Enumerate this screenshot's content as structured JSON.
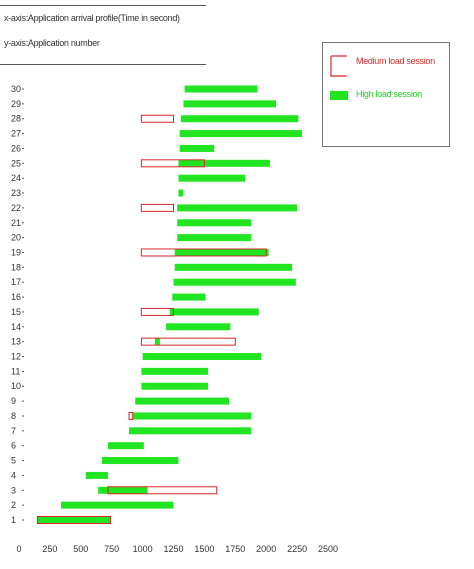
{
  "header": {
    "x_description": "x-axis:Application arrival profile(Time in second)",
    "y_description": "y-axis:Application number"
  },
  "colors": {
    "medium": "#d62828",
    "high": "#22e522"
  },
  "chart_data": {
    "type": "bar",
    "orientation": "horizontal-range",
    "xlim": [
      0,
      2500
    ],
    "ylim": [
      0,
      30
    ],
    "x_ticks": [
      "0",
      "250",
      "500",
      "750",
      "1000",
      "1250",
      "1500",
      "1750",
      "2000",
      "2250",
      "2500"
    ],
    "y_ticks": [
      "1",
      "2",
      "3",
      "4",
      "5",
      "6",
      "7",
      "8",
      "9",
      "10",
      "11",
      "12",
      "13",
      "14",
      "15",
      "16",
      "17",
      "18",
      "19",
      "20",
      "21",
      "22",
      "23",
      "24",
      "25",
      "26",
      "27",
      "28",
      "29",
      "30"
    ],
    "legend_position": "top-right",
    "series": [
      {
        "name": "Medium load session",
        "style": "outline",
        "bars": [
          {
            "app": 1,
            "start": 150,
            "end": 740
          },
          {
            "app": 3,
            "start": 720,
            "end": 1600
          },
          {
            "app": 8,
            "start": 890,
            "end": 920
          },
          {
            "app": 13,
            "start": 990,
            "end": 1750
          },
          {
            "app": 15,
            "start": 990,
            "end": 1250
          },
          {
            "app": 19,
            "start": 990,
            "end": 2000
          },
          {
            "app": 22,
            "start": 990,
            "end": 1250
          },
          {
            "app": 25,
            "start": 990,
            "end": 1500
          },
          {
            "app": 28,
            "start": 990,
            "end": 1250
          }
        ]
      },
      {
        "name": "High load session",
        "style": "filled",
        "bars": [
          {
            "app": 1,
            "start": 150,
            "end": 740
          },
          {
            "app": 2,
            "start": 340,
            "end": 1250
          },
          {
            "app": 3,
            "start": 640,
            "end": 1040
          },
          {
            "app": 4,
            "start": 540,
            "end": 720
          },
          {
            "app": 5,
            "start": 670,
            "end": 1290
          },
          {
            "app": 6,
            "start": 720,
            "end": 1010
          },
          {
            "app": 7,
            "start": 890,
            "end": 1880
          },
          {
            "app": 8,
            "start": 920,
            "end": 1880
          },
          {
            "app": 9,
            "start": 940,
            "end": 1700
          },
          {
            "app": 10,
            "start": 990,
            "end": 1530
          },
          {
            "app": 11,
            "start": 990,
            "end": 1530
          },
          {
            "app": 12,
            "start": 1000,
            "end": 1960
          },
          {
            "app": 13,
            "start": 1100,
            "end": 1140
          },
          {
            "app": 14,
            "start": 1190,
            "end": 1710
          },
          {
            "app": 15,
            "start": 1220,
            "end": 1940
          },
          {
            "app": 16,
            "start": 1240,
            "end": 1510
          },
          {
            "app": 17,
            "start": 1250,
            "end": 2240
          },
          {
            "app": 18,
            "start": 1260,
            "end": 2210
          },
          {
            "app": 19,
            "start": 1260,
            "end": 2020
          },
          {
            "app": 20,
            "start": 1280,
            "end": 1880
          },
          {
            "app": 21,
            "start": 1280,
            "end": 1880
          },
          {
            "app": 22,
            "start": 1280,
            "end": 2250
          },
          {
            "app": 23,
            "start": 1290,
            "end": 1330
          },
          {
            "app": 24,
            "start": 1290,
            "end": 1830
          },
          {
            "app": 25,
            "start": 1290,
            "end": 2030
          },
          {
            "app": 26,
            "start": 1300,
            "end": 1580
          },
          {
            "app": 27,
            "start": 1300,
            "end": 2290
          },
          {
            "app": 28,
            "start": 1310,
            "end": 2260
          },
          {
            "app": 29,
            "start": 1330,
            "end": 2080
          },
          {
            "app": 30,
            "start": 1340,
            "end": 1930
          }
        ]
      }
    ]
  }
}
